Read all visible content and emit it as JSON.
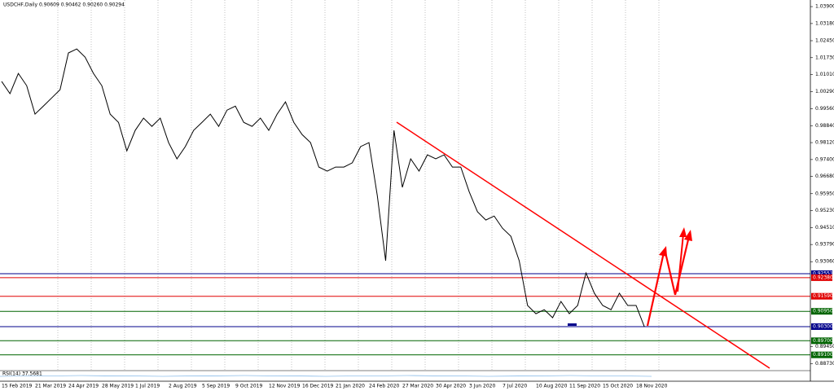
{
  "chart_data": {
    "type": "line",
    "title": "USDCHF,Daily  0.90609 0.90462 0.90260 0.90294",
    "indicator": "RSI(14) 37.5681",
    "categories": [
      "15 Feb 2019",
      null,
      null,
      null,
      "21 Mar 2019",
      null,
      null,
      null,
      "24 Apr 2019",
      null,
      null,
      null,
      "28 May 2019",
      null,
      null,
      null,
      "1 Jul 2019",
      null,
      null,
      null,
      "2 Aug 2019",
      null,
      null,
      null,
      "5 Sep 2019",
      null,
      null,
      null,
      "9 Oct 2019",
      null,
      null,
      null,
      "12 Nov 2019",
      null,
      null,
      null,
      "16 Dec 2019",
      null,
      null,
      null,
      "21 Jan 2020",
      null,
      null,
      null,
      "24 Feb 2020",
      null,
      null,
      null,
      "27 Mar 2020",
      null,
      null,
      null,
      "30 Apr 2020",
      null,
      null,
      null,
      "3 Jun 2020",
      null,
      null,
      null,
      "7 Jul 2020",
      null,
      null,
      null,
      "10 Aug 2020",
      null,
      null,
      null,
      "11 Sep 2020",
      null,
      null,
      null,
      "15 Oct 2020",
      null,
      null,
      null,
      "18 Nov 2020",
      null
    ],
    "series": [
      {
        "name": "USDCHF",
        "color": "#000000",
        "values": [
          1.0072,
          1.002,
          1.0106,
          1.0054,
          0.9933,
          0.9967,
          1.0002,
          1.0037,
          1.0193,
          1.021,
          1.0175,
          1.0106,
          1.0054,
          0.9933,
          0.9898,
          0.9777,
          0.9864,
          0.9916,
          0.9881,
          0.9916,
          0.9812,
          0.9743,
          0.9795,
          0.9864,
          0.9898,
          0.9933,
          0.9881,
          0.995,
          0.9967,
          0.9898,
          0.9881,
          0.9916,
          0.9864,
          0.9933,
          0.9985,
          0.9898,
          0.9846,
          0.9812,
          0.9708,
          0.9691,
          0.9708,
          0.9708,
          0.9726,
          0.9795,
          0.9812,
          0.9587,
          0.931,
          0.9864,
          0.9622,
          0.9743,
          0.9691,
          0.976,
          0.9743,
          0.976,
          0.9708,
          0.9708,
          0.9604,
          0.9518,
          0.9483,
          0.95,
          0.9448,
          0.9414,
          0.931,
          0.912,
          0.9085,
          0.9102,
          0.9068,
          0.9137,
          0.9085,
          0.912,
          0.9258,
          0.9172,
          0.912,
          0.9102,
          0.9172,
          0.912,
          0.912,
          0.9029
        ]
      }
    ],
    "ylim": [
      0.8843,
      1.0418
    ],
    "yticks": [
      {
        "value": 1.039,
        "label": "1.03900"
      },
      {
        "value": 1.0318,
        "label": "1.03180"
      },
      {
        "value": 1.0245,
        "label": "1.02450"
      },
      {
        "value": 1.0173,
        "label": "1.01730"
      },
      {
        "value": 1.0101,
        "label": "1.01010"
      },
      {
        "value": 1.0029,
        "label": "1.00290"
      },
      {
        "value": 0.9956,
        "label": "0.99560"
      },
      {
        "value": 0.9884,
        "label": "0.98840"
      },
      {
        "value": 0.9812,
        "label": "0.98120"
      },
      {
        "value": 0.974,
        "label": "0.97400"
      },
      {
        "value": 0.9668,
        "label": "0.96680"
      },
      {
        "value": 0.9595,
        "label": "0.95950"
      },
      {
        "value": 0.9523,
        "label": "0.95230"
      },
      {
        "value": 0.9451,
        "label": "0.94510"
      },
      {
        "value": 0.9379,
        "label": "0.93790"
      },
      {
        "value": 0.9306,
        "label": "0.93060"
      },
      {
        "value": 0.8945,
        "label": "0.89450"
      },
      {
        "value": 0.8873,
        "label": "0.88730"
      }
    ],
    "levels": [
      {
        "value": 0.92551,
        "label": "0.92551",
        "color": "#00008b"
      },
      {
        "value": 0.9238,
        "label": "0.92380",
        "color": "#e00000"
      },
      {
        "value": 0.9159,
        "label": "0.91590",
        "color": "#e00000"
      },
      {
        "value": 0.9095,
        "label": "0.90950",
        "color": "#006400"
      },
      {
        "value": 0.903,
        "label": "0.90300",
        "color": "#00008b"
      },
      {
        "value": 0.897,
        "label": "0.89700",
        "color": "#006400"
      },
      {
        "value": 0.891,
        "label": "0.89100",
        "color": "#006400"
      }
    ],
    "grid": true
  }
}
